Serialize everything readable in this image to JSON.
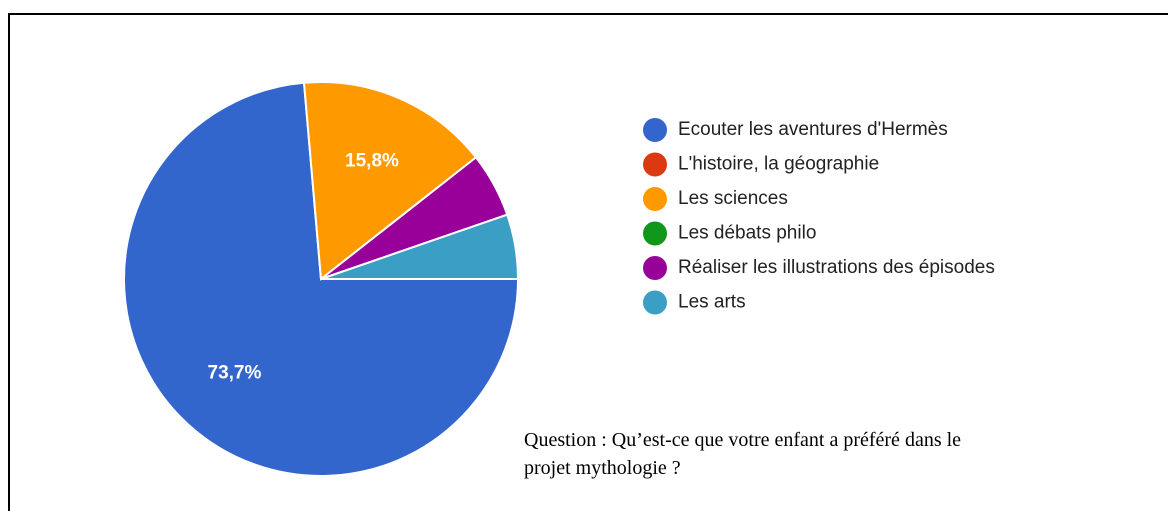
{
  "chart_data": {
    "type": "pie",
    "categories": [
      "Ecouter les aventures d'Hermès",
      "L'histoire, la géographie",
      "Les sciences",
      "Les débats philo",
      "Réaliser les illustrations des épisodes",
      "Les arts"
    ],
    "values": [
      73.7,
      0,
      15.8,
      0,
      5.3,
      5.3
    ],
    "value_labels": [
      "73,7%",
      null,
      "15,8%",
      null,
      null,
      null
    ],
    "colors": [
      "#3366cc",
      "#dc3912",
      "#ff9900",
      "#109618",
      "#990099",
      "#3b9ec4"
    ],
    "legend": "right",
    "annotation": "Question : Qu’est-ce que votre enfant a préféré dans le projet mythologie ?"
  }
}
